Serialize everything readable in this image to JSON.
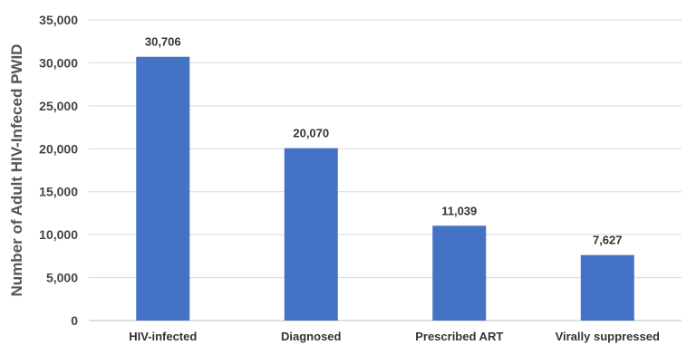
{
  "chart_data": {
    "type": "bar",
    "title": "",
    "xlabel": "",
    "ylabel": "Number of Adult HIV-Infeced PWID",
    "categories": [
      "HIV-infected",
      "Diagnosed",
      "Prescribed ART",
      "Virally suppressed"
    ],
    "values": [
      30706,
      20070,
      11039,
      7627
    ],
    "value_labels": [
      "30,706",
      "20,070",
      "11,039",
      "7,627"
    ],
    "ylim": [
      0,
      35000
    ],
    "yticks": [
      0,
      5000,
      10000,
      15000,
      20000,
      25000,
      30000,
      35000
    ],
    "ytick_labels": [
      "0",
      "5,000",
      "10,000",
      "15,000",
      "20,000",
      "25,000",
      "30,000",
      "35,000"
    ],
    "grid": true,
    "bar_color": "#4472c4"
  }
}
